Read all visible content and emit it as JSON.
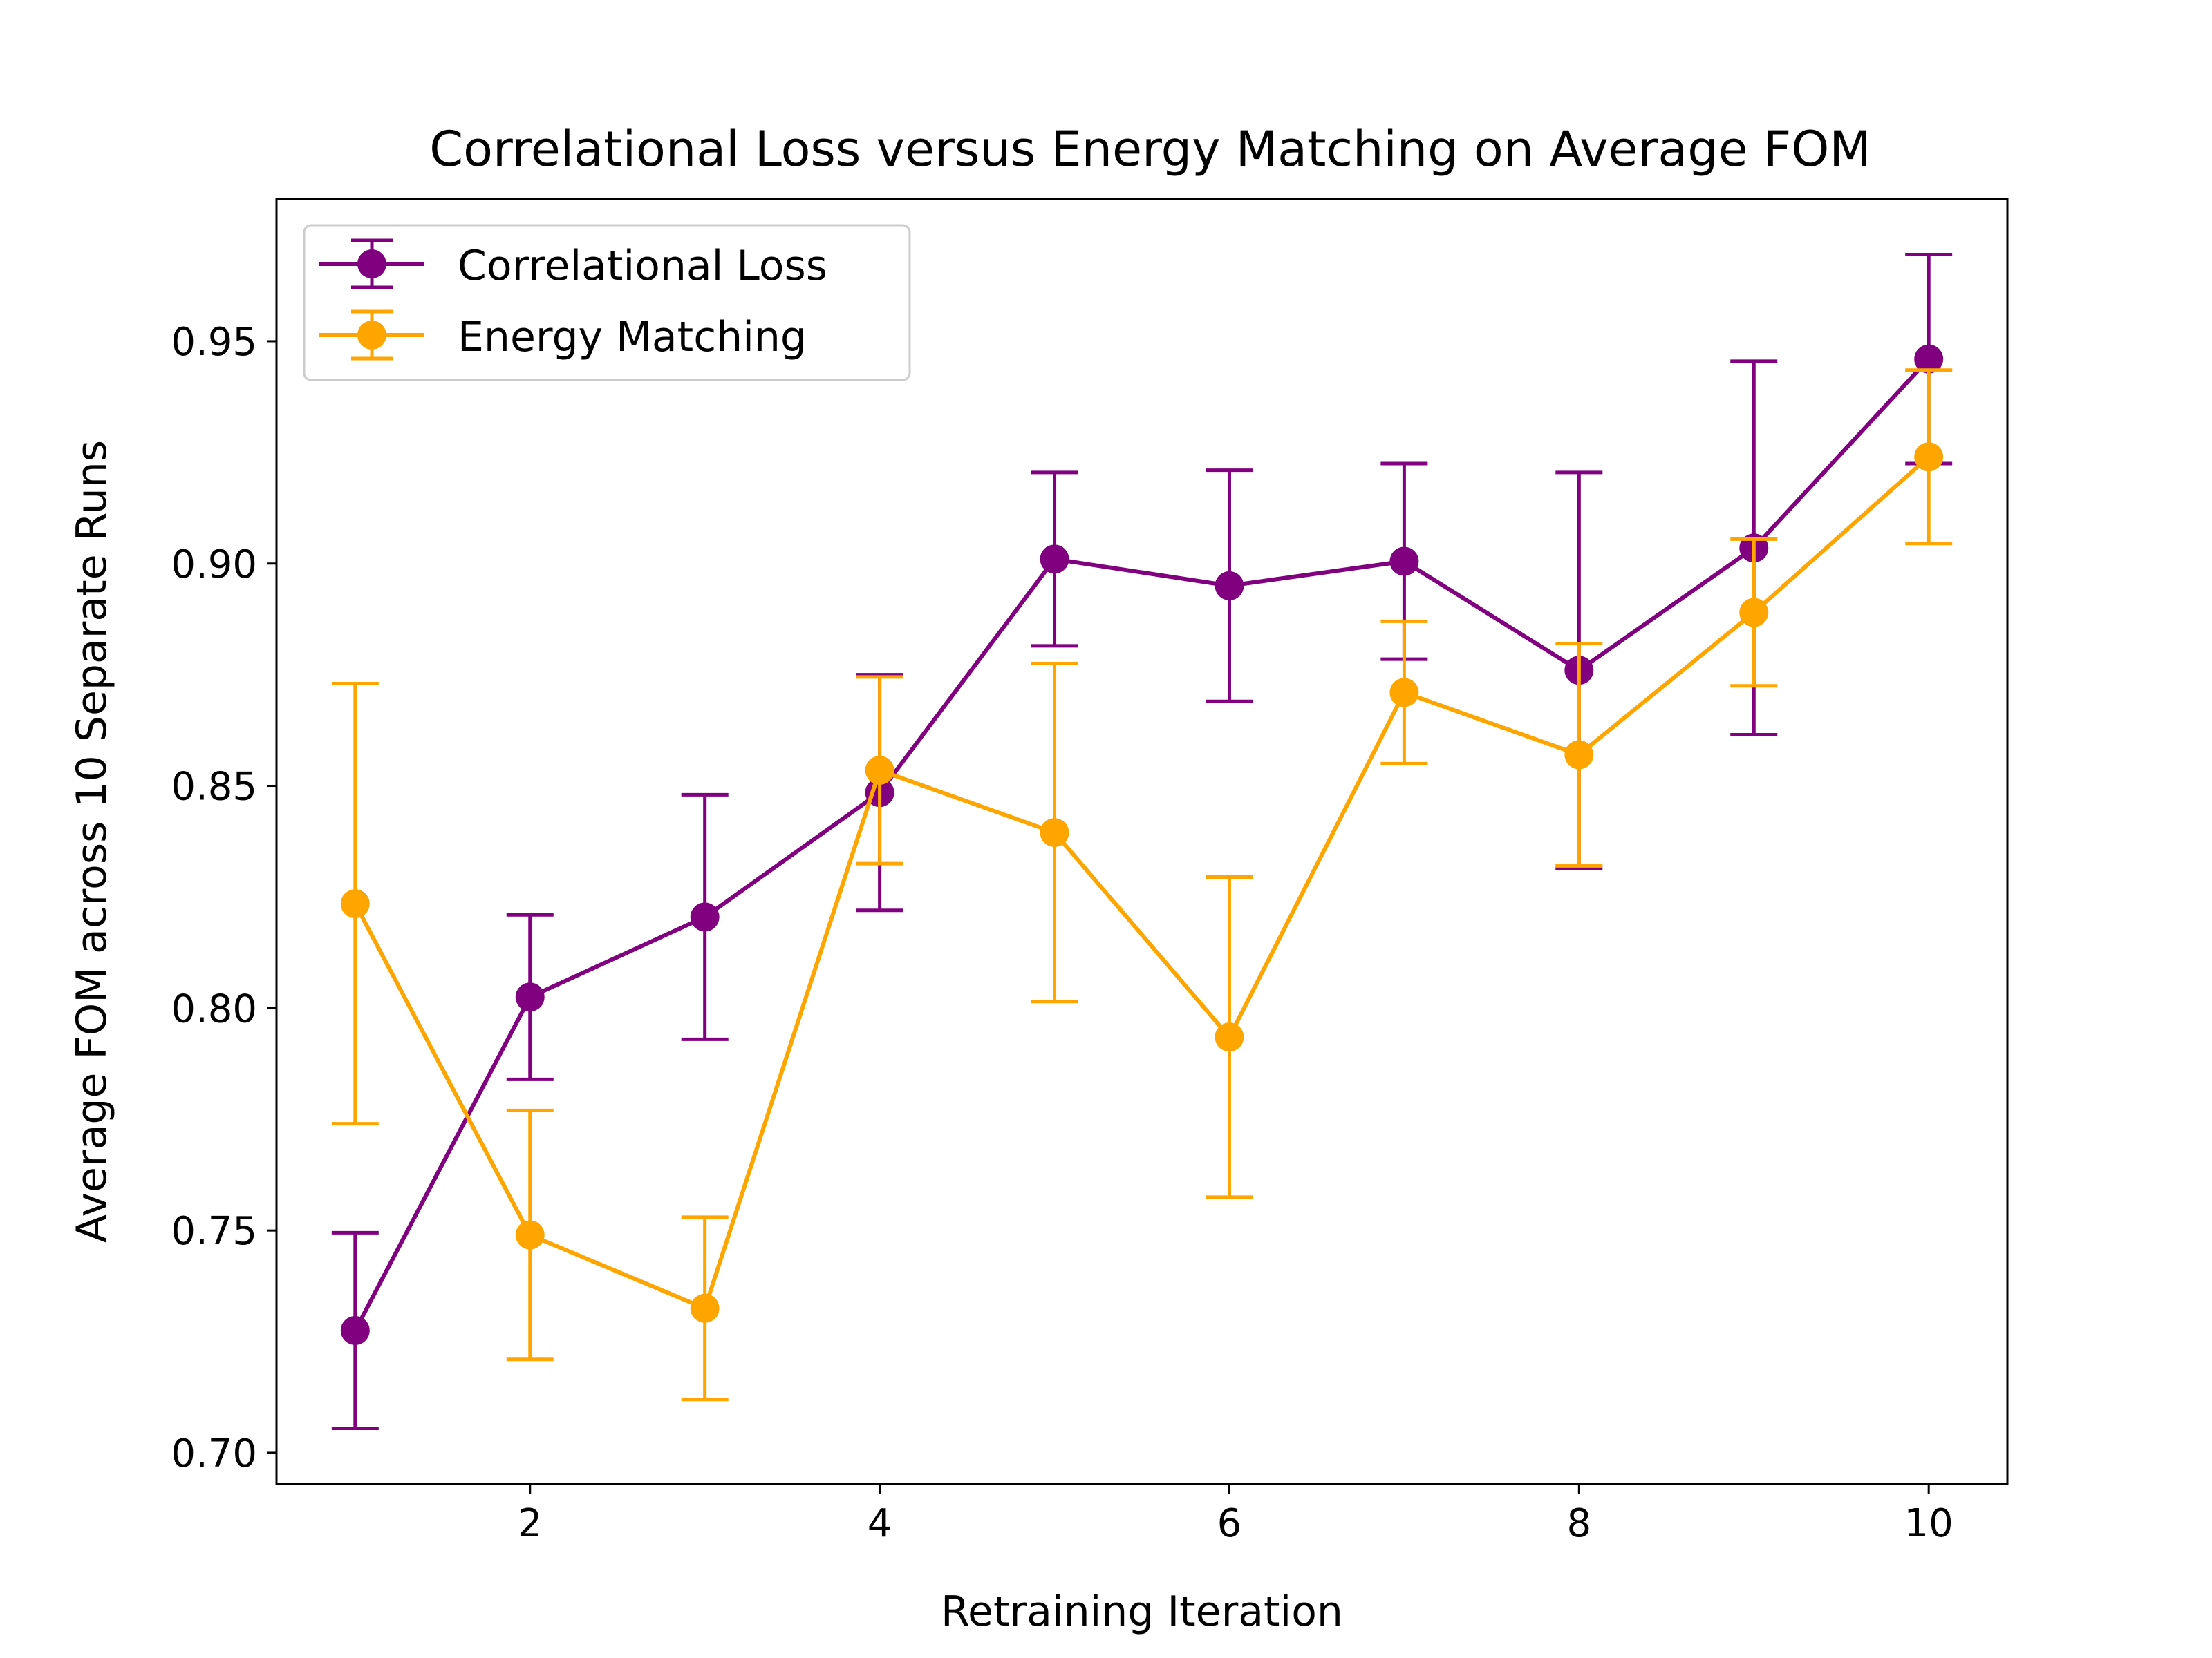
{
  "chart_data": {
    "type": "line",
    "title": "Correlational Loss versus Energy Matching on Average FOM",
    "xlabel": "Retraining Iteration",
    "ylabel": "Average FOM across 10 Separate Runs",
    "xlim": [
      0.55,
      10.45
    ],
    "ylim": [
      0.693,
      0.982
    ],
    "xticks": [
      2,
      4,
      6,
      8,
      10
    ],
    "xtick_labels": [
      "2",
      "4",
      "6",
      "8",
      "10"
    ],
    "yticks": [
      0.7,
      0.75,
      0.8,
      0.85,
      0.9,
      0.95
    ],
    "ytick_labels": [
      "0.70",
      "0.75",
      "0.80",
      "0.85",
      "0.90",
      "0.95"
    ],
    "grid": false,
    "legend_position": "top-left",
    "x": [
      1,
      2,
      3,
      4,
      5,
      6,
      7,
      8,
      9,
      10
    ],
    "series": [
      {
        "name": "Correlational Loss",
        "color": "#800080",
        "values": [
          0.7275,
          0.8025,
          0.8205,
          0.8485,
          0.901,
          0.895,
          0.9005,
          0.876,
          0.9035,
          0.946
        ],
        "err": [
          0.022,
          0.0185,
          0.0275,
          0.0265,
          0.0195,
          0.026,
          0.022,
          0.0445,
          0.042,
          0.0235
        ]
      },
      {
        "name": "Energy Matching",
        "color": "#FFA500",
        "values": [
          0.8235,
          0.749,
          0.7325,
          0.8535,
          0.8395,
          0.7935,
          0.871,
          0.857,
          0.889,
          0.924
        ],
        "err": [
          0.0495,
          0.028,
          0.0205,
          0.021,
          0.038,
          0.036,
          0.016,
          0.025,
          0.0165,
          0.0195
        ]
      }
    ]
  }
}
